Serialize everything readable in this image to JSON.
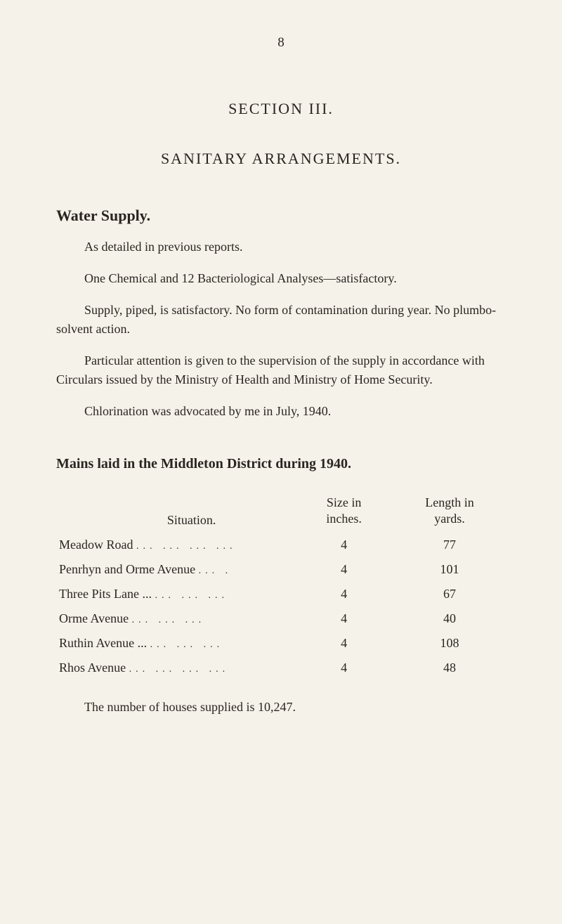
{
  "page_number": "8",
  "section_title": "SECTION III.",
  "main_heading": "SANITARY ARRANGEMENTS.",
  "water_supply": {
    "heading": "Water Supply.",
    "p1": "As detailed in previous reports.",
    "p2": "One Chemical and 12 Bacteriological Analyses—satisfactory.",
    "p3": "Supply, piped, is satisfactory. No form of contamination during year. No plumbo-solvent action.",
    "p4": "Particular attention is given to the supervision of the supply in accordance with Circulars issued by the Ministry of Health and Ministry of Home Security.",
    "p5": "Chlorination was advocated by me in July, 1940."
  },
  "mains": {
    "heading": "Mains laid in the Middleton District during 1940.",
    "headers": {
      "situation": "Situation.",
      "size_top": "Size in",
      "size_bottom": "inches.",
      "length_top": "Length in",
      "length_bottom": "yards."
    },
    "rows": [
      {
        "name": "Meadow Road",
        "dots": "...   ...   ...   ...",
        "size": "4",
        "length": "77"
      },
      {
        "name": "Penrhyn and Orme Avenue",
        "dots": "...   .",
        "size": "4",
        "length": "101"
      },
      {
        "name": "Three Pits Lane ...",
        "dots": "...   ...   ...",
        "size": "4",
        "length": "67"
      },
      {
        "name": "Orme Avenue",
        "dots": "...   ...   ...",
        "size": "4",
        "length": "40"
      },
      {
        "name": "Ruthin Avenue ...",
        "dots": "...   ...   ...",
        "size": "4",
        "length": "108"
      },
      {
        "name": "Rhos Avenue",
        "dots": "...   ...   ...   ...",
        "size": "4",
        "length": "48"
      }
    ],
    "footer": "The number of houses supplied is 10,247."
  },
  "colors": {
    "background": "#f5f2ea",
    "text": "#2a2520"
  },
  "typography": {
    "body_fontsize": 18,
    "heading_fontsize": 22,
    "page_number_fontsize": 19
  }
}
